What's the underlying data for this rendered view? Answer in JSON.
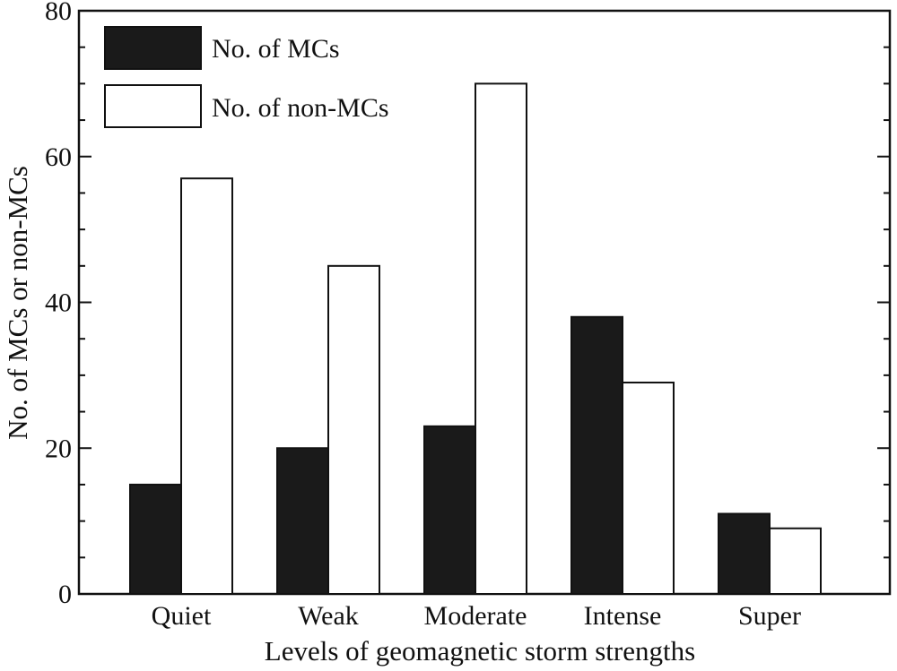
{
  "chart_data": {
    "type": "bar",
    "title": "",
    "xlabel": "Levels of geomagnetic storm strengths",
    "ylabel": "No. of MCs or non-MCs",
    "ylim": [
      0,
      80
    ],
    "yticks": [
      "0",
      "20",
      "40",
      "60",
      "80"
    ],
    "grid": false,
    "legend_position": "top-left",
    "categories": [
      "Quiet",
      "Weak",
      "Moderate",
      "Intense",
      "Super"
    ],
    "series": [
      {
        "name": "No. of MCs",
        "values": [
          15,
          20,
          23,
          38,
          11
        ],
        "color": "#1a1a1a"
      },
      {
        "name": "No. of non-MCs",
        "values": [
          57,
          45,
          70,
          29,
          9
        ],
        "color": "#ffffff"
      }
    ]
  }
}
